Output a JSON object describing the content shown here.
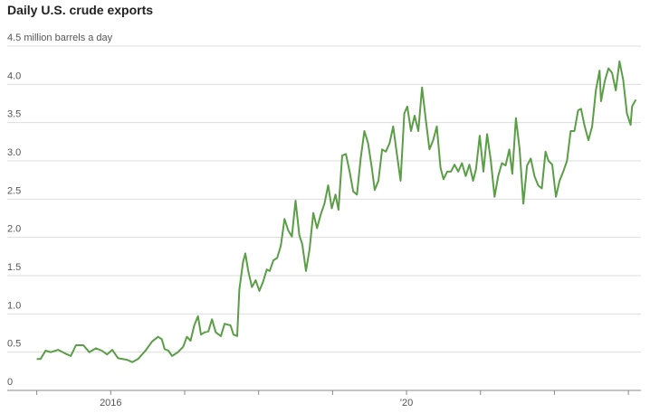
{
  "chart_data": {
    "type": "line",
    "title": "Daily U.S. crude exports",
    "color": "#5a9e46",
    "grid": true,
    "x": [
      2015.0,
      2015.05,
      2015.12,
      2015.19,
      2015.29,
      2015.39,
      2015.46,
      2015.53,
      2015.63,
      2015.71,
      2015.8,
      2015.88,
      2015.95,
      2016.02,
      2016.1,
      2016.22,
      2016.29,
      2016.37,
      2016.47,
      2016.56,
      2016.64,
      2016.69,
      2016.73,
      2016.78,
      2016.83,
      2016.91,
      2016.98,
      2017.03,
      2017.08,
      2017.13,
      2017.18,
      2017.22,
      2017.27,
      2017.32,
      2017.37,
      2017.42,
      2017.49,
      2017.54,
      2017.62,
      2017.66,
      2017.71,
      2017.74,
      2017.79,
      2017.82,
      2017.86,
      2017.91,
      2017.96,
      2018.01,
      2018.06,
      2018.11,
      2018.15,
      2018.2,
      2018.25,
      2018.3,
      2018.35,
      2018.4,
      2018.45,
      2018.5,
      2018.55,
      2018.59,
      2018.64,
      2018.69,
      2018.74,
      2018.79,
      2018.84,
      2018.89,
      2018.94,
      2018.99,
      2019.04,
      2019.08,
      2019.13,
      2019.18,
      2019.23,
      2019.28,
      2019.33,
      2019.38,
      2019.43,
      2019.48,
      2019.53,
      2019.57,
      2019.62,
      2019.67,
      2019.72,
      2019.77,
      2019.82,
      2019.87,
      2019.92,
      2019.97,
      2020.01,
      2020.06,
      2020.11,
      2020.16,
      2020.21,
      2020.26,
      2020.31,
      2020.36,
      2020.41,
      2020.46,
      2020.5,
      2020.55,
      2020.6,
      2020.65,
      2020.7,
      2020.75,
      2020.8,
      2020.85,
      2020.9,
      2020.94,
      2020.99,
      2021.04,
      2021.09,
      2021.14,
      2021.19,
      2021.24,
      2021.29,
      2021.34,
      2021.39,
      2021.43,
      2021.48,
      2021.53,
      2021.58,
      2021.63,
      2021.68,
      2021.73,
      2021.78,
      2021.83,
      2021.88,
      2021.92,
      2021.97,
      2022.02,
      2022.07,
      2022.12,
      2022.17,
      2022.22,
      2022.27,
      2022.32,
      2022.36,
      2022.41,
      2022.46,
      2022.51,
      2022.56,
      2022.61,
      2022.63,
      2022.68,
      2022.73,
      2022.78,
      2022.83,
      2022.88,
      2022.93,
      2022.98,
      2023.03,
      2023.05,
      2023.1
    ],
    "values": [
      0.41,
      0.41,
      0.52,
      0.5,
      0.53,
      0.48,
      0.45,
      0.59,
      0.59,
      0.5,
      0.55,
      0.52,
      0.47,
      0.53,
      0.42,
      0.4,
      0.37,
      0.41,
      0.52,
      0.64,
      0.7,
      0.67,
      0.54,
      0.52,
      0.45,
      0.5,
      0.57,
      0.7,
      0.65,
      0.85,
      0.97,
      0.73,
      0.76,
      0.77,
      0.93,
      0.76,
      0.71,
      0.87,
      0.85,
      0.73,
      0.71,
      1.32,
      1.68,
      1.79,
      1.56,
      1.35,
      1.44,
      1.3,
      1.42,
      1.58,
      1.56,
      1.7,
      1.73,
      1.89,
      2.24,
      2.09,
      2.01,
      2.48,
      2.03,
      1.91,
      1.56,
      1.85,
      2.32,
      2.12,
      2.3,
      2.44,
      2.68,
      2.38,
      2.56,
      2.36,
      3.07,
      3.09,
      2.86,
      2.6,
      2.56,
      3.03,
      3.39,
      3.23,
      2.91,
      2.62,
      2.74,
      3.15,
      3.12,
      3.23,
      3.45,
      3.09,
      2.74,
      3.62,
      3.71,
      3.39,
      3.59,
      3.39,
      3.96,
      3.54,
      3.15,
      3.27,
      3.45,
      2.91,
      2.76,
      2.86,
      2.86,
      2.95,
      2.86,
      2.97,
      2.8,
      2.95,
      2.74,
      2.89,
      3.33,
      2.86,
      3.35,
      3.0,
      2.53,
      2.8,
      2.97,
      2.94,
      3.15,
      2.83,
      3.56,
      3.15,
      2.44,
      2.94,
      3.03,
      2.8,
      2.68,
      2.64,
      3.12,
      3.0,
      2.95,
      2.53,
      2.74,
      2.86,
      3.0,
      3.39,
      3.39,
      3.66,
      3.68,
      3.45,
      3.27,
      3.45,
      3.92,
      4.18,
      3.78,
      4.04,
      4.21,
      4.15,
      3.92,
      4.3,
      4.06,
      3.62,
      3.47,
      3.71,
      3.8
    ],
    "xlim": [
      2014.87,
      2023.17
    ],
    "xticks": [
      {
        "value": 2015,
        "label": null
      },
      2016,
      {
        "value": 2017,
        "label": null
      },
      {
        "value": 2018,
        "label": null
      },
      {
        "value": 2019,
        "label": null
      },
      {
        "value": 2020,
        "label": "'20"
      },
      {
        "value": 2021,
        "label": null
      },
      {
        "value": 2022,
        "label": null
      },
      {
        "value": 2023,
        "label": null
      }
    ],
    "ylim": [
      0,
      4.5
    ],
    "yticks": [
      0,
      0.5,
      {
        "value": 1,
        "label": "1.0"
      },
      1.5,
      {
        "value": 2,
        "label": "2.0"
      },
      2.5,
      {
        "value": 3,
        "label": "3.0"
      },
      3.5,
      {
        "value": 4,
        "label": "4.0"
      },
      {
        "value": 4.5,
        "label": "4.5 million barrels a day"
      }
    ]
  }
}
